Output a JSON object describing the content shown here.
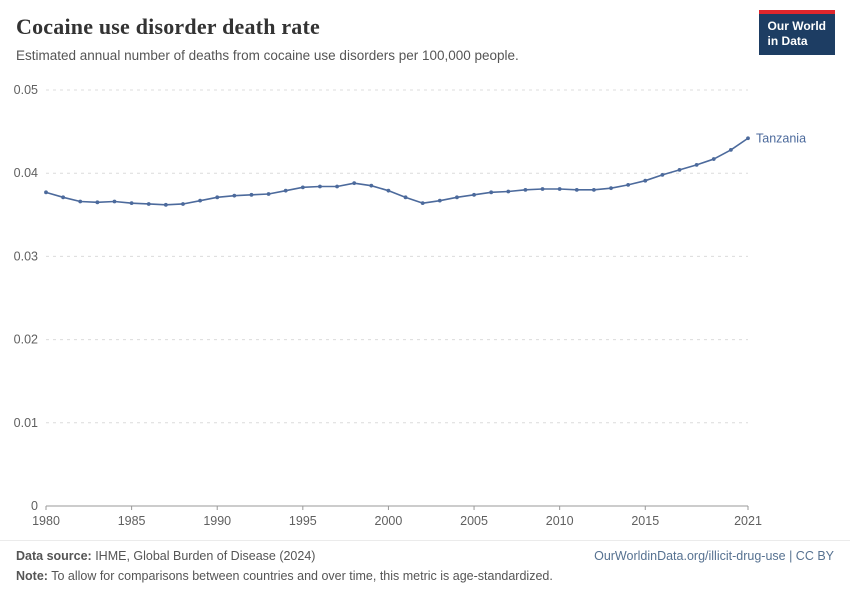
{
  "header": {
    "title": "Cocaine use disorder death rate",
    "subtitle": "Estimated annual number of deaths from cocaine use disorders per 100,000 people.",
    "logo": {
      "line1": "Our World",
      "line2": "in Data"
    }
  },
  "chart_data": {
    "type": "line",
    "title": "Cocaine use disorder death rate",
    "xlabel": "",
    "ylabel": "",
    "xlim": [
      1980,
      2021
    ],
    "ylim": [
      0,
      0.05
    ],
    "x_ticks": [
      1980,
      1985,
      1990,
      1995,
      2000,
      2005,
      2010,
      2015,
      2021
    ],
    "y_ticks": [
      0,
      0.01,
      0.02,
      0.03,
      0.04,
      0.05
    ],
    "grid": true,
    "legend_position": "end-of-line-label",
    "x": [
      1980,
      1981,
      1982,
      1983,
      1984,
      1985,
      1986,
      1987,
      1988,
      1989,
      1990,
      1991,
      1992,
      1993,
      1994,
      1995,
      1996,
      1997,
      1998,
      1999,
      2000,
      2001,
      2002,
      2003,
      2004,
      2005,
      2006,
      2007,
      2008,
      2009,
      2010,
      2011,
      2012,
      2013,
      2014,
      2015,
      2016,
      2017,
      2018,
      2019,
      2020,
      2021
    ],
    "series": [
      {
        "name": "Tanzania",
        "color": "#4c6a9c",
        "values": [
          0.0377,
          0.0371,
          0.0366,
          0.0365,
          0.0366,
          0.0364,
          0.0363,
          0.0362,
          0.0363,
          0.0367,
          0.0371,
          0.0373,
          0.0374,
          0.0375,
          0.0379,
          0.0383,
          0.0384,
          0.0384,
          0.0388,
          0.0385,
          0.0379,
          0.0371,
          0.0364,
          0.0367,
          0.0371,
          0.0374,
          0.0377,
          0.0378,
          0.038,
          0.0381,
          0.0381,
          0.038,
          0.038,
          0.0382,
          0.0386,
          0.0391,
          0.0398,
          0.0404,
          0.041,
          0.0417,
          0.0428,
          0.0442
        ]
      }
    ]
  },
  "footer": {
    "source_label": "Data source:",
    "source_text": " IHME, Global Burden of Disease (2024)",
    "link_text": "OurWorldinData.org/illicit-drug-use | CC BY",
    "note_label": "Note:",
    "note_text": " To allow for comparisons between countries and over time, this metric is age-standardized."
  },
  "colors": {
    "accent": "#4c6a9c",
    "logo_bg": "#1d3d63",
    "logo_stripe": "#e0262c",
    "grid": "#dcdcdc",
    "axis_line": "#999999",
    "axis_text": "#606060"
  }
}
